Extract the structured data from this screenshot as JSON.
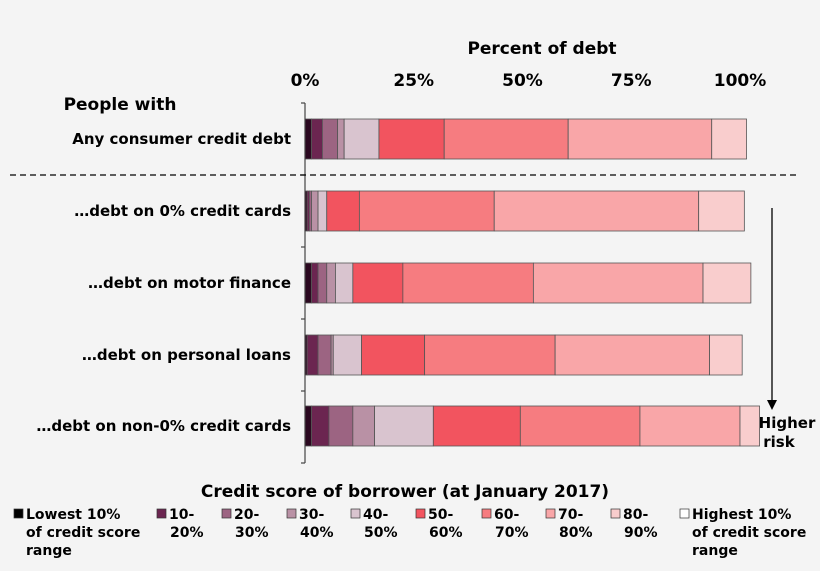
{
  "chart_data": {
    "type": "bar",
    "orientation": "horizontal",
    "stacked": true,
    "title": "Percent of debt",
    "row_header": "People with",
    "xlim": [
      0,
      100
    ],
    "xticks": [
      "0%",
      "25%",
      "50%",
      "75%",
      "100%"
    ],
    "categories": [
      "Any consumer credit debt",
      "…debt on 0% credit cards",
      "…debt on motor finance",
      "…debt on personal loans",
      "…debt on non-0% credit cards"
    ],
    "series": [
      {
        "name": "Lowest 10% of credit score range",
        "color": "#2b0820",
        "values": [
          1.5,
          0.5,
          1.5,
          0.5,
          1.5
        ]
      },
      {
        "name": "10-20%",
        "color": "#6b2550",
        "values": [
          2.5,
          0.5,
          1.5,
          2.5,
          4.0
        ]
      },
      {
        "name": "20-30%",
        "color": "#9c6482",
        "values": [
          3.5,
          0.5,
          2.0,
          3.0,
          5.5
        ]
      },
      {
        "name": "30-40%",
        "color": "#b991a5",
        "values": [
          1.5,
          1.5,
          2.0,
          0.5,
          5.0
        ]
      },
      {
        "name": "40-50%",
        "color": "#d9c4cf",
        "values": [
          8.0,
          2.0,
          4.0,
          6.5,
          13.5
        ]
      },
      {
        "name": "50-60%",
        "color": "#f2545f",
        "values": [
          15.0,
          7.5,
          11.5,
          14.5,
          20.0
        ]
      },
      {
        "name": "60-70%",
        "color": "#f67c80",
        "values": [
          28.5,
          31.0,
          30.0,
          30.0,
          27.5
        ]
      },
      {
        "name": "70-80%",
        "color": "#f9a6a8",
        "values": [
          33.0,
          47.0,
          39.0,
          35.5,
          23.0
        ]
      },
      {
        "name": "80-90%",
        "color": "#f9cdcd",
        "values": [
          8.0,
          10.5,
          11.0,
          7.5,
          4.5
        ]
      },
      {
        "name": "Highest 10% of credit score range",
        "color": "#ffffff",
        "values": [
          0,
          0,
          0,
          0,
          0
        ]
      }
    ],
    "legend_title": "Credit score of borrower (at January 2017)",
    "legend_placement": "bottom",
    "arrow_label": [
      "Higher",
      "risk"
    ],
    "separator_after_row": 0
  },
  "legend_items": [
    {
      "lines": [
        "Lowest 10%",
        "of credit score",
        "range"
      ]
    },
    {
      "lines": [
        "10-",
        "20%"
      ]
    },
    {
      "lines": [
        "20-",
        "30%"
      ]
    },
    {
      "lines": [
        "30-",
        "40%"
      ]
    },
    {
      "lines": [
        "40-",
        "50%"
      ]
    },
    {
      "lines": [
        "50-",
        "60%"
      ]
    },
    {
      "lines": [
        "60-",
        "70%"
      ]
    },
    {
      "lines": [
        "70-",
        "80%"
      ]
    },
    {
      "lines": [
        "80-",
        "90%"
      ]
    },
    {
      "lines": [
        "Highest 10%",
        "of credit score",
        "range"
      ]
    }
  ]
}
